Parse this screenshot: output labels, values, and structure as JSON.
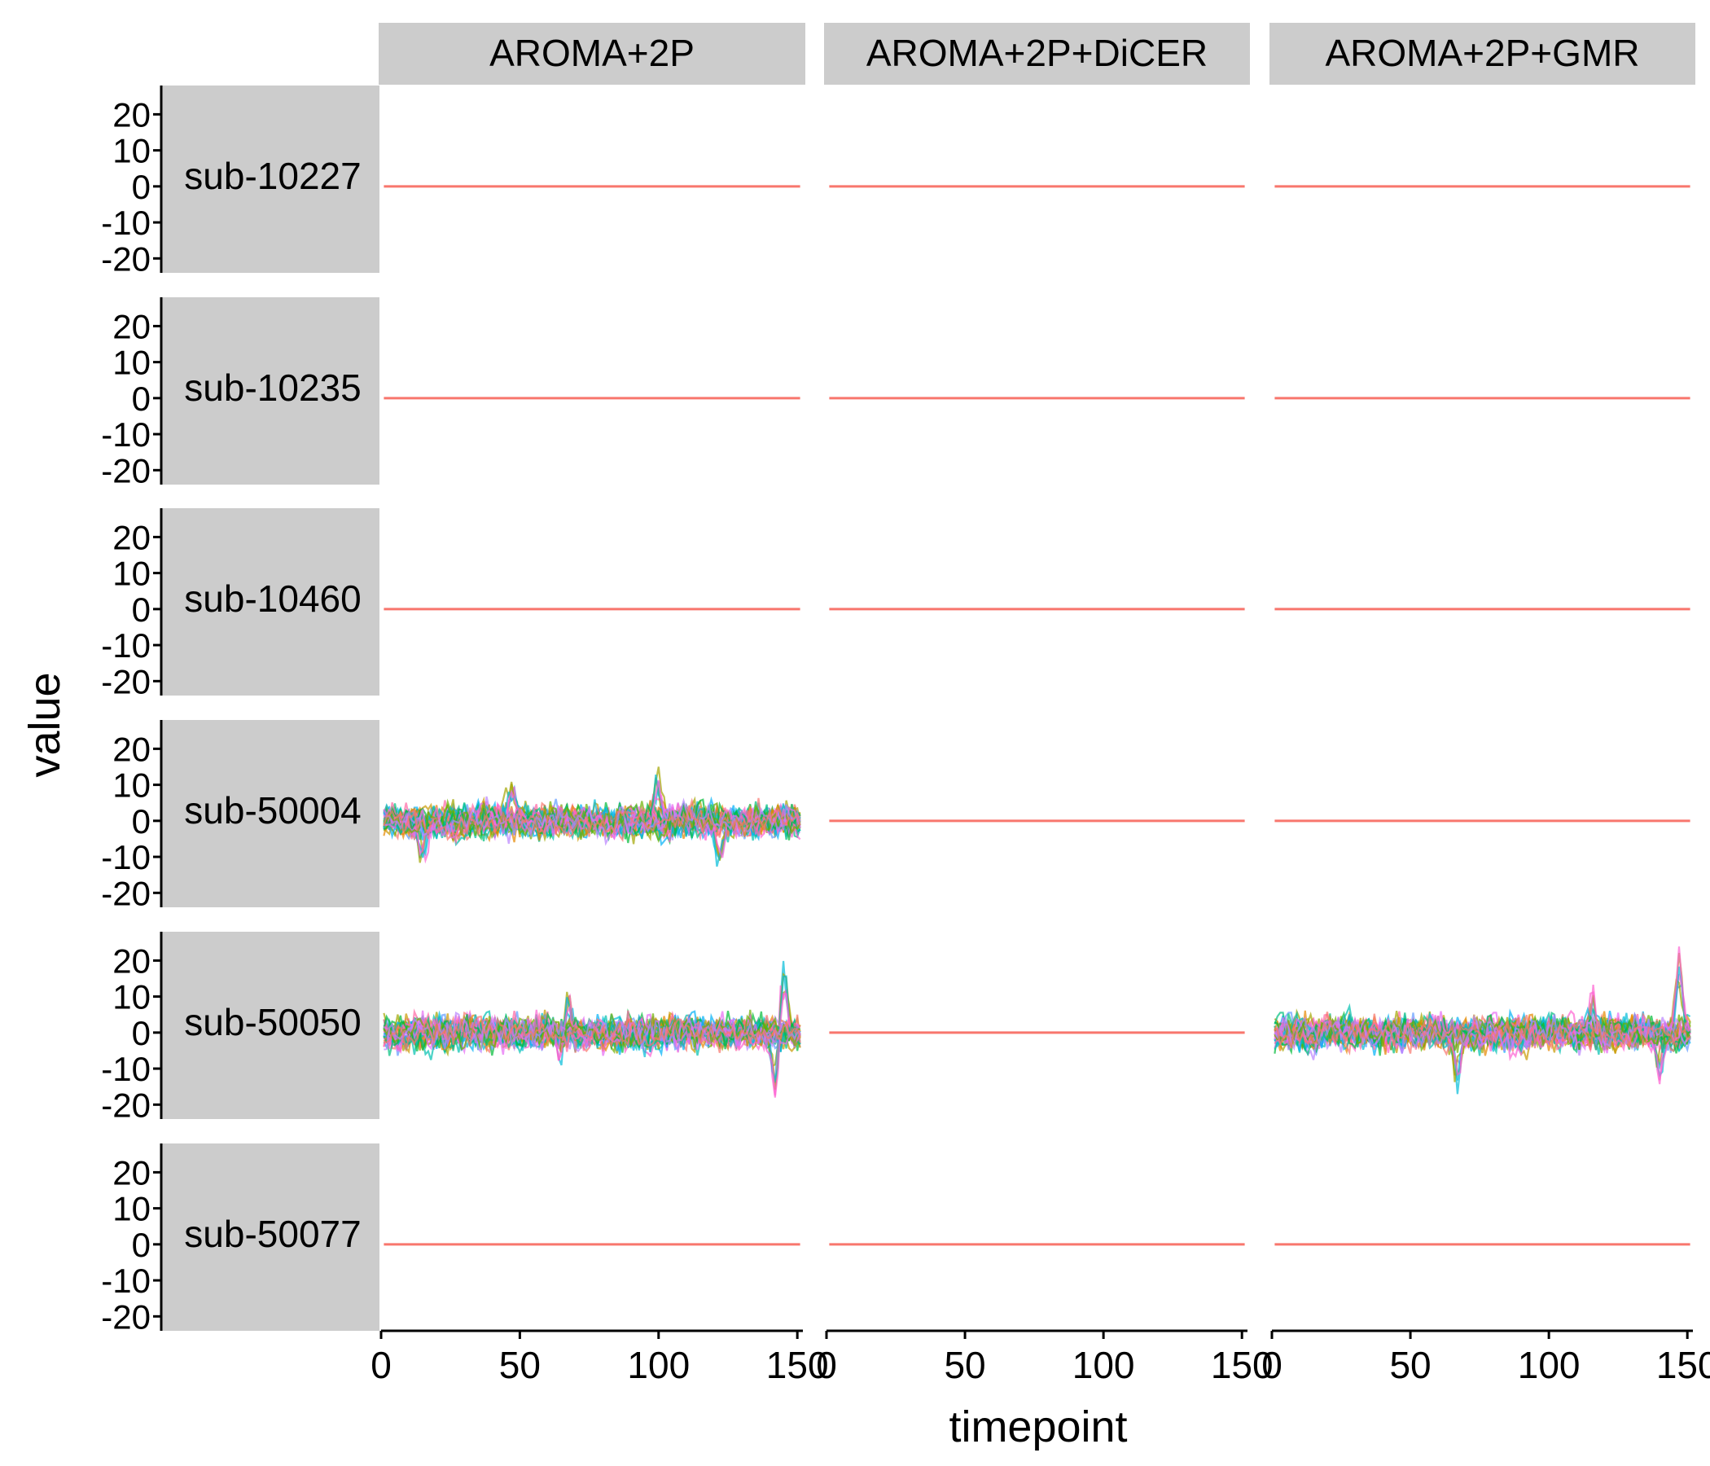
{
  "chart_data": {
    "type": "line",
    "xlabel": "timepoint",
    "ylabel": "value",
    "xlim": [
      0,
      152
    ],
    "ylim": [
      -24,
      28
    ],
    "x_ticks": [
      "0",
      "50",
      "100",
      "150"
    ],
    "y_ticks": [
      "20",
      "10",
      "0",
      "-10",
      "-20"
    ],
    "x_tick_values": [
      0,
      50,
      100,
      150
    ],
    "y_tick_values": [
      20,
      10,
      0,
      -10,
      -20
    ],
    "columns": [
      "AROMA+2P",
      "AROMA+2P+DiCER",
      "AROMA+2P+GMR"
    ],
    "rows": [
      "sub-10227",
      "sub-10235",
      "sub-10460",
      "sub-50004",
      "sub-50050",
      "sub-50077"
    ],
    "flat_value": 0,
    "flat_color": "#f8766d",
    "panels": [
      {
        "row": "sub-50004",
        "column": "AROMA+2P",
        "shape": "noisy",
        "approx_range": [
          -15,
          15
        ],
        "peaks": [
          {
            "x": 100,
            "y": 15
          },
          {
            "x": 122,
            "y": -15
          },
          {
            "x": 47,
            "y": 12
          },
          {
            "x": 15,
            "y": -14
          }
        ]
      },
      {
        "row": "sub-50050",
        "column": "AROMA+2P",
        "shape": "noisy",
        "approx_range": [
          -21,
          25
        ],
        "peaks": [
          {
            "x": 145,
            "y": 25
          },
          {
            "x": 142,
            "y": -21
          },
          {
            "x": 65,
            "y": -12
          },
          {
            "x": 67,
            "y": 14
          }
        ]
      },
      {
        "row": "sub-50050",
        "column": "AROMA+2P+GMR",
        "shape": "noisy",
        "approx_range": [
          -19,
          27
        ],
        "peaks": [
          {
            "x": 147,
            "y": 27
          },
          {
            "x": 67,
            "y": -19
          },
          {
            "x": 140,
            "y": -15
          },
          {
            "x": 116,
            "y": 13
          }
        ]
      }
    ],
    "series_colors": [
      "#f8766d",
      "#e58700",
      "#c99800",
      "#a3a500",
      "#6bb100",
      "#00ba38",
      "#00bf7d",
      "#00c0af",
      "#00bcd8",
      "#00b0f6",
      "#619cff",
      "#b983ff",
      "#e76bf3",
      "#fd61d1",
      "#ff67a4"
    ],
    "grid": false,
    "legend": "none"
  }
}
